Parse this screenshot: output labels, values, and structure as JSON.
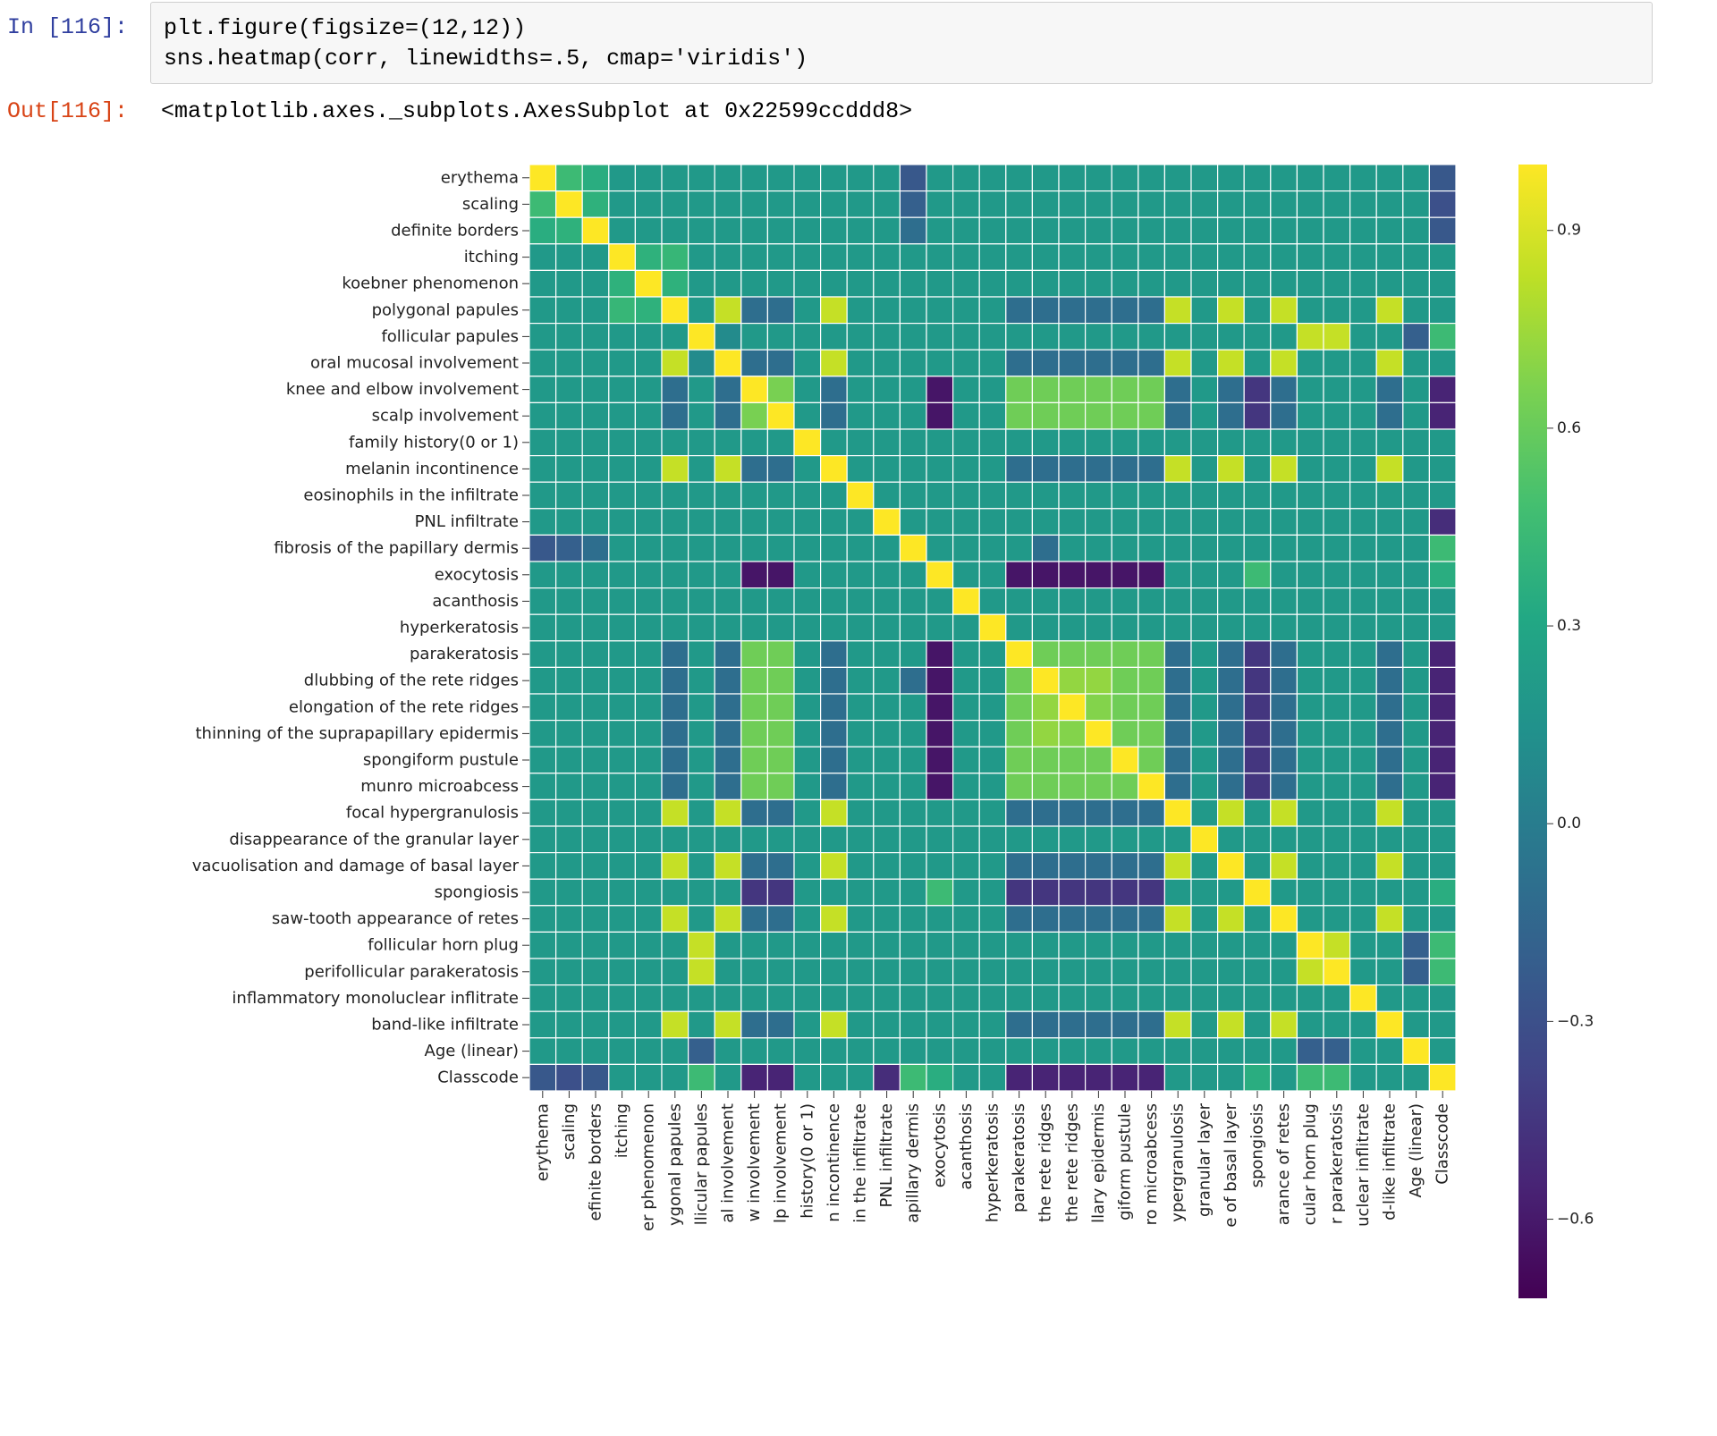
{
  "notebook": {
    "in_prompt": "In [116]:",
    "out_prompt": "Out[116]:",
    "code_line1": "plt.figure(figsize=(12,12))",
    "code_line2": "sns.heatmap(corr, linewidths=.5, cmap='viridis')",
    "output_text": "<matplotlib.axes._subplots.AxesSubplot at 0x22599ccddd8>"
  },
  "chart_data": {
    "type": "heatmap",
    "title": "",
    "colormap": "viridis",
    "linewidths": 0.5,
    "labels": [
      "erythema",
      "scaling",
      "definite borders",
      "itching",
      "koebner phenomenon",
      "polygonal papules",
      "follicular papules",
      "oral mucosal involvement",
      "knee and elbow involvement",
      "scalp involvement",
      "family history(0 or 1)",
      "melanin incontinence",
      "eosinophils in the infiltrate",
      "PNL infiltrate",
      "fibrosis of the papillary dermis",
      "exocytosis",
      "acanthosis",
      "hyperkeratosis",
      "parakeratosis",
      "dlubbing of the rete ridges",
      "elongation of the rete ridges",
      "thinning of the suprapapillary epidermis",
      "spongiform pustule",
      "munro microabcess",
      "focal hypergranulosis",
      "disappearance of the granular layer",
      "vacuolisation and damage of basal layer",
      "spongiosis",
      "saw-tooth appearance of retes",
      "follicular horn plug",
      "perifollicular parakeratosis",
      "inflammatory monoluclear inflitrate",
      "band-like infiltrate",
      "Age (linear)",
      "Classcode"
    ],
    "x_tick_labels": [
      "erythema",
      "scaling",
      "efinite borders",
      "itching",
      "er phenomenon",
      "ygonal papules",
      "llicular papules",
      "al involvement",
      "w involvement",
      "lp involvement",
      "history(0 or 1)",
      "n incontinence",
      "in the infiltrate",
      "PNL infiltrate",
      "apillary dermis",
      "exocytosis",
      "acanthosis",
      "hyperkeratosis",
      "parakeratosis",
      "the rete ridges",
      "the rete ridges",
      "llary epidermis",
      "giform pustule",
      "ro microabcess",
      "ypergranulosis",
      "granular layer",
      "e of basal layer",
      "spongiosis",
      "arance of retes",
      "cular horn plug",
      "r parakeratosis",
      "uclear inflitrate",
      "d-like infiltrate",
      "Age (linear)",
      "Classcode"
    ],
    "groups": {
      "general": [
        0,
        1,
        2,
        3,
        4,
        10,
        13,
        16,
        17
      ],
      "lichen": [
        5,
        7,
        11,
        24,
        26,
        28,
        32
      ],
      "psoriatic": [
        8,
        9,
        18,
        19,
        20,
        21,
        22,
        23
      ],
      "follicular": [
        6,
        29,
        30
      ]
    },
    "group_correlations": {
      "within_lichen": 0.85,
      "within_follicular": 0.85,
      "within_psoriatic": 0.62,
      "exocytosis_vs_psoriatic": -0.62,
      "spongiosis_vs_psoriatic": -0.45,
      "classcode_vs_psoriatic": -0.55,
      "default": 0.2
    },
    "pair_overrides": [
      [
        0,
        1,
        0.45
      ],
      [
        0,
        2,
        0.35
      ],
      [
        1,
        2,
        0.38
      ],
      [
        3,
        4,
        0.38
      ],
      [
        3,
        5,
        0.42
      ],
      [
        4,
        5,
        0.38
      ],
      [
        0,
        14,
        -0.25
      ],
      [
        1,
        14,
        -0.2
      ],
      [
        2,
        14,
        -0.1
      ],
      [
        8,
        9,
        0.65
      ],
      [
        19,
        20,
        0.72
      ],
      [
        19,
        21,
        0.72
      ],
      [
        20,
        21,
        0.68
      ],
      [
        6,
        33,
        -0.2
      ],
      [
        29,
        33,
        -0.2
      ],
      [
        30,
        33,
        -0.2
      ],
      [
        6,
        34,
        0.45
      ],
      [
        29,
        34,
        0.45
      ],
      [
        30,
        34,
        0.45
      ],
      [
        14,
        34,
        0.45
      ],
      [
        15,
        34,
        0.35
      ],
      [
        27,
        34,
        0.35
      ],
      [
        15,
        27,
        0.45
      ],
      [
        0,
        34,
        -0.25
      ],
      [
        1,
        34,
        -0.3
      ],
      [
        2,
        34,
        -0.25
      ],
      [
        13,
        34,
        -0.5
      ],
      [
        14,
        19,
        -0.1
      ],
      [
        6,
        7,
        0.1
      ]
    ],
    "diagonal": 1.0,
    "colorbar": {
      "ticks": [
        0.9,
        0.6,
        0.3,
        0.0,
        -0.3,
        -0.6
      ],
      "tick_labels": [
        "0.9",
        "0.6",
        "0.3",
        "0.0",
        "−0.3",
        "−0.6"
      ],
      "range": [
        -0.72,
        1.0
      ]
    }
  }
}
